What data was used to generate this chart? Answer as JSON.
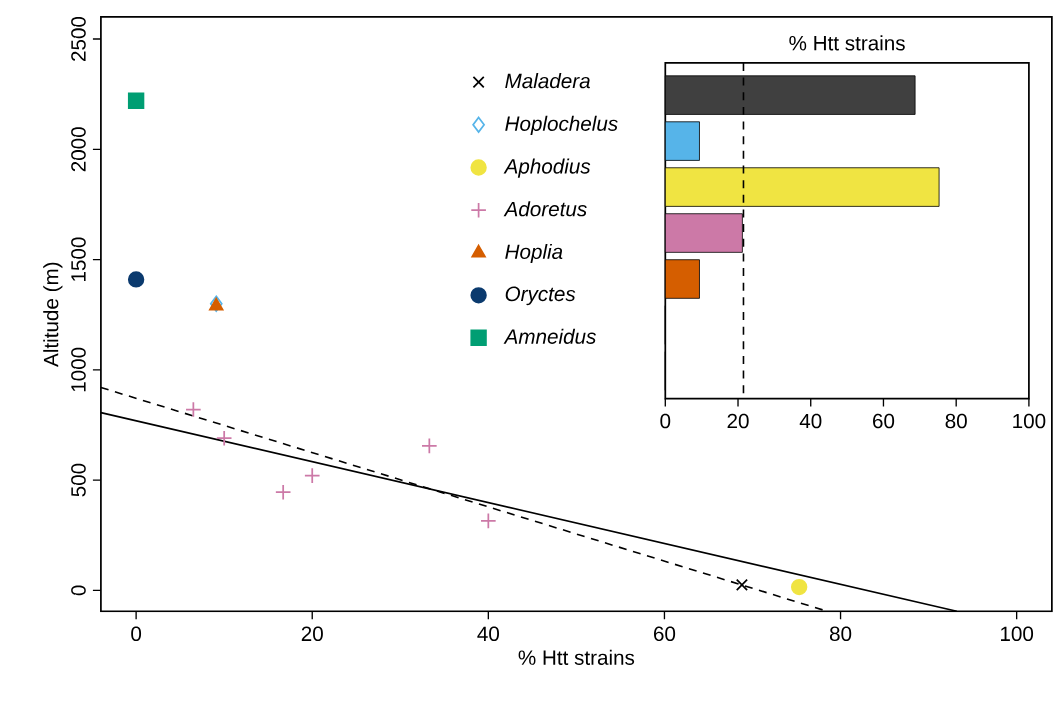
{
  "chart_data": [
    {
      "type": "scatter",
      "xlabel": "% Htt strains",
      "ylabel": "Altitude (m)",
      "xlim": [
        -4,
        104
      ],
      "ylim": [
        -95,
        2600
      ],
      "xticks": [
        0,
        20,
        40,
        60,
        80,
        100
      ],
      "yticks": [
        0,
        500,
        1000,
        1500,
        2000,
        2500
      ],
      "grid": false,
      "legend": "top",
      "series": [
        {
          "name": "Maladera",
          "color": "#000000",
          "marker": "cross",
          "x": [
            68.8
          ],
          "values": [
            25
          ]
        },
        {
          "name": "Hoplochelus",
          "color": "#56b4e9",
          "marker": "diamond",
          "x": [
            9.1
          ],
          "values": [
            1300
          ]
        },
        {
          "name": "Aphodius",
          "color": "#f0e442",
          "marker": "circle",
          "x": [
            75.3
          ],
          "values": [
            15
          ]
        },
        {
          "name": "Adoretus",
          "color": "#cc79a7",
          "marker": "plus",
          "x": [
            6.5,
            10,
            16.7,
            20,
            33.3,
            40
          ],
          "values": [
            820,
            690,
            445,
            520,
            655,
            315
          ]
        },
        {
          "name": "Hoplia",
          "color": "#d55e00",
          "marker": "triangle",
          "x": [
            9.1
          ],
          "values": [
            1290
          ]
        },
        {
          "name": "Oryctes",
          "color": "#0b3a6e",
          "marker": "circle",
          "x": [
            0
          ],
          "values": [
            1410
          ]
        },
        {
          "name": "Amneidus",
          "color": "#009e73",
          "marker": "square",
          "x": [
            0
          ],
          "values": [
            2220
          ]
        },
        {
          "type": "line",
          "color": "#000000",
          "line_style": "solid",
          "x": [
            -4,
            93.2
          ],
          "values": [
            806,
            -95
          ]
        },
        {
          "type": "line",
          "color": "#000000",
          "line_style": "dashed",
          "x": [
            -4,
            78.5
          ],
          "values": [
            920,
            -95
          ]
        }
      ]
    },
    {
      "type": "bar",
      "orientation": "horizontal",
      "title": "% Htt strains",
      "categories": [
        null,
        null,
        null,
        null,
        null,
        null,
        null
      ],
      "values": [
        68.7,
        9.4,
        75.3,
        21.2,
        9.4,
        0,
        0
      ],
      "colors": [
        "#404040",
        "#56b4e9",
        "#f0e442",
        "#cc79a7",
        "#d55e00",
        "#0b3a6e",
        "#009e73"
      ],
      "xlim": [
        0,
        100
      ],
      "xticks": [
        0,
        20,
        40,
        60,
        80,
        100
      ],
      "tick_labels": "x",
      "ref_lines": [
        {
          "axis": "x",
          "value": 21.5,
          "line_style": "dashed",
          "color": "#000000"
        }
      ]
    }
  ]
}
